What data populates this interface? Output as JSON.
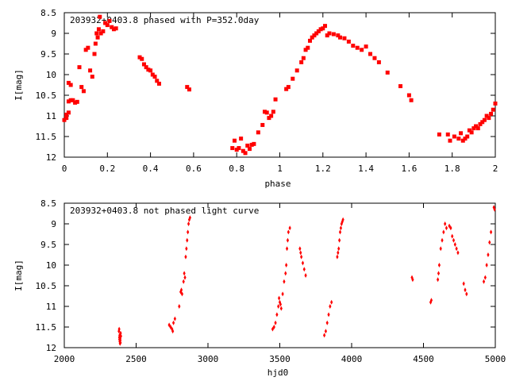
{
  "colors": {
    "marker": "#ff0000",
    "axis": "#000000",
    "background": "#ffffff"
  },
  "chart_data": [
    {
      "type": "scatter",
      "title": "203932+0403.8 phased with P=352.0day",
      "xlabel": "phase",
      "ylabel": "I[mag]",
      "xlim": [
        0,
        2
      ],
      "ylim": [
        12,
        8.5
      ],
      "y_inverted": true,
      "grid": false,
      "legend": "none",
      "marker": "filled-square",
      "x_ticks": [
        "0",
        "0.2",
        "0.4",
        "0.6",
        "0.8",
        "1",
        "1.2",
        "1.4",
        "1.6",
        "1.8",
        "2"
      ],
      "y_ticks": [
        "8.5",
        "9",
        "9.5",
        "10",
        "10.5",
        "11",
        "11.5",
        "12"
      ],
      "points": [
        [
          0.0,
          11.1
        ],
        [
          0.01,
          11.05
        ],
        [
          0.01,
          10.97
        ],
        [
          0.02,
          10.92
        ],
        [
          0.02,
          10.65
        ],
        [
          0.02,
          10.2
        ],
        [
          0.03,
          10.25
        ],
        [
          0.03,
          10.62
        ],
        [
          0.04,
          10.62
        ],
        [
          0.05,
          10.68
        ],
        [
          0.06,
          10.66
        ],
        [
          0.07,
          9.82
        ],
        [
          0.08,
          10.3
        ],
        [
          0.09,
          10.4
        ],
        [
          0.1,
          9.4
        ],
        [
          0.11,
          9.35
        ],
        [
          0.12,
          9.9
        ],
        [
          0.13,
          10.05
        ],
        [
          0.14,
          9.5
        ],
        [
          0.145,
          9.25
        ],
        [
          0.15,
          9.0
        ],
        [
          0.155,
          9.1
        ],
        [
          0.16,
          8.9
        ],
        [
          0.165,
          8.6
        ],
        [
          0.17,
          9.0
        ],
        [
          0.18,
          8.95
        ],
        [
          0.19,
          8.75
        ],
        [
          0.2,
          8.8
        ],
        [
          0.21,
          8.7
        ],
        [
          0.22,
          8.85
        ],
        [
          0.23,
          8.9
        ],
        [
          0.24,
          8.88
        ],
        [
          0.35,
          9.58
        ],
        [
          0.36,
          9.62
        ],
        [
          0.37,
          9.75
        ],
        [
          0.38,
          9.82
        ],
        [
          0.39,
          9.88
        ],
        [
          0.4,
          9.9
        ],
        [
          0.41,
          10.0
        ],
        [
          0.42,
          10.05
        ],
        [
          0.43,
          10.15
        ],
        [
          0.44,
          10.22
        ],
        [
          0.57,
          10.3
        ],
        [
          0.58,
          10.36
        ],
        [
          0.78,
          11.78
        ],
        [
          0.79,
          11.6
        ],
        [
          0.8,
          11.82
        ],
        [
          0.81,
          11.78
        ],
        [
          0.82,
          11.55
        ],
        [
          0.83,
          11.85
        ],
        [
          0.84,
          11.9
        ],
        [
          0.85,
          11.72
        ],
        [
          0.86,
          11.8
        ],
        [
          0.87,
          11.7
        ],
        [
          0.88,
          11.68
        ],
        [
          0.9,
          11.4
        ],
        [
          0.92,
          11.22
        ],
        [
          0.93,
          10.9
        ],
        [
          0.94,
          10.92
        ],
        [
          0.95,
          11.05
        ],
        [
          0.96,
          11.0
        ],
        [
          0.97,
          10.9
        ],
        [
          0.98,
          10.6
        ],
        [
          1.03,
          10.35
        ],
        [
          1.04,
          10.3
        ],
        [
          1.06,
          10.1
        ],
        [
          1.08,
          9.9
        ],
        [
          1.1,
          9.7
        ],
        [
          1.11,
          9.6
        ],
        [
          1.12,
          9.4
        ],
        [
          1.13,
          9.35
        ],
        [
          1.14,
          9.18
        ],
        [
          1.15,
          9.1
        ],
        [
          1.16,
          9.05
        ],
        [
          1.17,
          9.0
        ],
        [
          1.18,
          8.95
        ],
        [
          1.19,
          8.9
        ],
        [
          1.2,
          8.88
        ],
        [
          1.21,
          8.82
        ],
        [
          1.22,
          9.05
        ],
        [
          1.23,
          9.0
        ],
        [
          1.25,
          9.02
        ],
        [
          1.27,
          9.05
        ],
        [
          1.28,
          9.1
        ],
        [
          1.3,
          9.12
        ],
        [
          1.32,
          9.2
        ],
        [
          1.34,
          9.3
        ],
        [
          1.36,
          9.35
        ],
        [
          1.38,
          9.4
        ],
        [
          1.4,
          9.32
        ],
        [
          1.42,
          9.5
        ],
        [
          1.44,
          9.6
        ],
        [
          1.46,
          9.7
        ],
        [
          1.5,
          9.95
        ],
        [
          1.56,
          10.28
        ],
        [
          1.6,
          10.5
        ],
        [
          1.61,
          10.62
        ],
        [
          1.74,
          11.45
        ],
        [
          1.78,
          11.45
        ],
        [
          1.79,
          11.6
        ],
        [
          1.81,
          11.5
        ],
        [
          1.83,
          11.55
        ],
        [
          1.84,
          11.42
        ],
        [
          1.85,
          11.6
        ],
        [
          1.86,
          11.55
        ],
        [
          1.87,
          11.5
        ],
        [
          1.88,
          11.35
        ],
        [
          1.89,
          11.4
        ],
        [
          1.9,
          11.3
        ],
        [
          1.91,
          11.25
        ],
        [
          1.92,
          11.3
        ],
        [
          1.93,
          11.2
        ],
        [
          1.94,
          11.15
        ],
        [
          1.95,
          11.1
        ],
        [
          1.96,
          11.0
        ],
        [
          1.97,
          11.05
        ],
        [
          1.98,
          10.95
        ],
        [
          1.99,
          10.85
        ],
        [
          2.0,
          10.7
        ]
      ]
    },
    {
      "type": "scatter",
      "title": "203932+0403.8 not phased light curve",
      "xlabel": "hjd0",
      "ylabel": "I[mag]",
      "xlim": [
        2000,
        5000
      ],
      "ylim": [
        12,
        8.5
      ],
      "y_inverted": true,
      "grid": false,
      "legend": "none",
      "marker": "small-diamond",
      "x_ticks": [
        "2000",
        "2500",
        "3000",
        "3500",
        "4000",
        "4500",
        "5000"
      ],
      "y_ticks": [
        "8.5",
        "9",
        "9.5",
        "10",
        "10.5",
        "11",
        "11.5",
        "12"
      ],
      "points": [
        [
          2380,
          11.6
        ],
        [
          2382,
          11.55
        ],
        [
          2383,
          11.75
        ],
        [
          2384,
          11.8
        ],
        [
          2385,
          11.7
        ],
        [
          2386,
          11.85
        ],
        [
          2388,
          11.9
        ],
        [
          2389,
          11.78
        ],
        [
          2390,
          11.82
        ],
        [
          2391,
          11.88
        ],
        [
          2392,
          11.65
        ],
        [
          2394,
          11.72
        ],
        [
          2730,
          11.45
        ],
        [
          2740,
          11.5
        ],
        [
          2750,
          11.55
        ],
        [
          2755,
          11.6
        ],
        [
          2760,
          11.4
        ],
        [
          2770,
          11.3
        ],
        [
          2800,
          11.0
        ],
        [
          2810,
          10.65
        ],
        [
          2815,
          10.6
        ],
        [
          2820,
          10.7
        ],
        [
          2830,
          10.4
        ],
        [
          2835,
          10.2
        ],
        [
          2840,
          10.3
        ],
        [
          2845,
          9.8
        ],
        [
          2850,
          9.6
        ],
        [
          2855,
          9.4
        ],
        [
          2860,
          9.2
        ],
        [
          2865,
          9.0
        ],
        [
          2870,
          8.9
        ],
        [
          2875,
          8.85
        ],
        [
          3450,
          11.55
        ],
        [
          3460,
          11.5
        ],
        [
          3470,
          11.4
        ],
        [
          3480,
          11.2
        ],
        [
          3490,
          11.0
        ],
        [
          3495,
          10.8
        ],
        [
          3500,
          10.9
        ],
        [
          3505,
          10.95
        ],
        [
          3510,
          11.05
        ],
        [
          3520,
          10.7
        ],
        [
          3530,
          10.4
        ],
        [
          3540,
          10.2
        ],
        [
          3545,
          10.0
        ],
        [
          3550,
          9.6
        ],
        [
          3555,
          9.4
        ],
        [
          3560,
          9.2
        ],
        [
          3570,
          9.1
        ],
        [
          3640,
          9.6
        ],
        [
          3645,
          9.7
        ],
        [
          3650,
          9.8
        ],
        [
          3660,
          9.95
        ],
        [
          3670,
          10.1
        ],
        [
          3680,
          10.25
        ],
        [
          3810,
          11.7
        ],
        [
          3820,
          11.6
        ],
        [
          3830,
          11.4
        ],
        [
          3840,
          11.2
        ],
        [
          3850,
          11.0
        ],
        [
          3860,
          10.9
        ],
        [
          3900,
          9.8
        ],
        [
          3905,
          9.7
        ],
        [
          3910,
          9.6
        ],
        [
          3915,
          9.4
        ],
        [
          3920,
          9.2
        ],
        [
          3925,
          9.1
        ],
        [
          3930,
          9.0
        ],
        [
          3935,
          8.95
        ],
        [
          3940,
          8.9
        ],
        [
          4420,
          10.3
        ],
        [
          4425,
          10.35
        ],
        [
          4550,
          10.9
        ],
        [
          4555,
          10.85
        ],
        [
          4600,
          10.35
        ],
        [
          4605,
          10.2
        ],
        [
          4610,
          10.0
        ],
        [
          4620,
          9.6
        ],
        [
          4630,
          9.4
        ],
        [
          4640,
          9.2
        ],
        [
          4650,
          9.0
        ],
        [
          4660,
          9.1
        ],
        [
          4680,
          9.05
        ],
        [
          4690,
          9.1
        ],
        [
          4700,
          9.3
        ],
        [
          4710,
          9.4
        ],
        [
          4720,
          9.5
        ],
        [
          4730,
          9.6
        ],
        [
          4740,
          9.7
        ],
        [
          4780,
          10.45
        ],
        [
          4790,
          10.6
        ],
        [
          4800,
          10.7
        ],
        [
          4920,
          10.4
        ],
        [
          4930,
          10.3
        ],
        [
          4940,
          10.0
        ],
        [
          4950,
          9.75
        ],
        [
          4960,
          9.45
        ],
        [
          4970,
          9.2
        ],
        [
          4990,
          8.6
        ],
        [
          4995,
          8.65
        ]
      ]
    }
  ]
}
